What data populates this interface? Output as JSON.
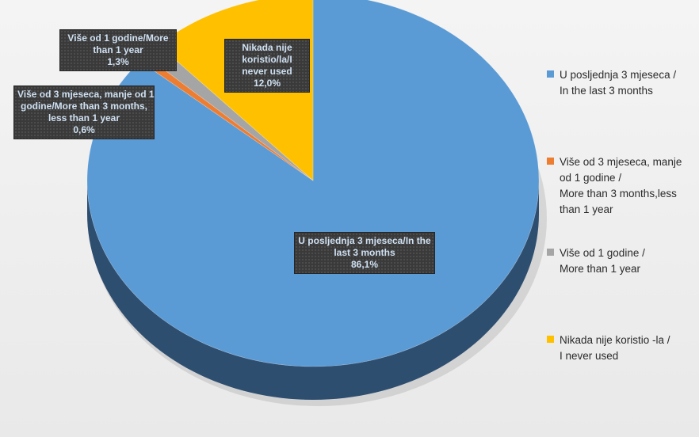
{
  "chart_data": {
    "type": "pie",
    "title": "",
    "three_d": true,
    "legend_position": "right",
    "slices": [
      {
        "legend_lines": [
          "U posljednja 3 mjeseca /",
          "In the last 3 months"
        ],
        "label_lines": [
          "U posljednja 3 mjeseca/In the",
          "last 3 months"
        ],
        "value": 86.1,
        "value_text": "86,1%",
        "color": "#5b9bd5",
        "side_color": "#2e4e70"
      },
      {
        "legend_lines": [
          "Više od 3 mjeseca, manje",
          "od 1 godine /",
          "More than 3 months,less",
          "than 1 year"
        ],
        "label_lines": [
          "Više od 3 mjeseca, manje od 1",
          "godine/More than 3 months,",
          "less than 1 year"
        ],
        "value": 0.6,
        "value_text": "0,6%",
        "color": "#ed7d31",
        "side_color": "#a4531d"
      },
      {
        "legend_lines": [
          "Više od 1 godine /",
          "More than 1 year"
        ],
        "label_lines": [
          "Više od 1 godine/More",
          "than 1 year"
        ],
        "value": 1.3,
        "value_text": "1,3%",
        "color": "#a5a5a5",
        "side_color": "#6f6f6f"
      },
      {
        "legend_lines": [
          "Nikada nije koristio -la /",
          "I never used"
        ],
        "label_lines": [
          "Nikada nije",
          "koristio/la/I",
          "never used"
        ],
        "value": 12.0,
        "value_text": "12,0%",
        "color": "#ffc000",
        "side_color": "#a37a00"
      }
    ]
  }
}
